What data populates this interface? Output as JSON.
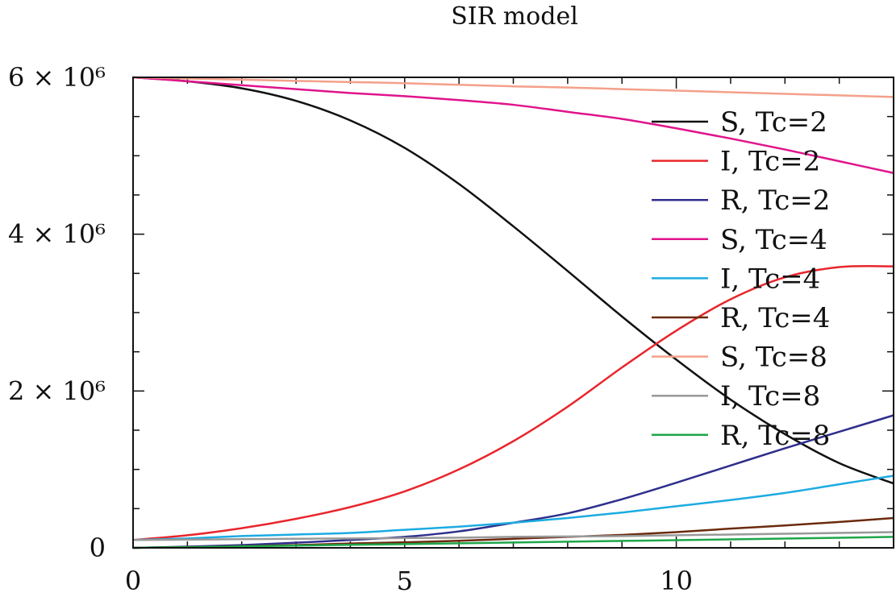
{
  "chart_data": {
    "type": "line",
    "title": "SIR model",
    "xlabel": "",
    "ylabel": "",
    "xlim": [
      0,
      14
    ],
    "ylim": [
      0,
      6000000
    ],
    "x_ticks": [
      0,
      5,
      10
    ],
    "x_tick_labels": [
      "0",
      "5",
      "10"
    ],
    "y_ticks": [
      0,
      2000000,
      4000000,
      6000000
    ],
    "y_tick_labels": [
      "0",
      "2 × 10⁶",
      "4 × 10⁶",
      "6 × 10⁶"
    ],
    "legend_position": "right",
    "grid": false,
    "x": [
      0,
      1,
      2,
      3,
      4,
      5,
      6,
      7,
      8,
      9,
      10,
      11,
      12,
      13,
      14
    ],
    "series": [
      {
        "name": "S, Tc=2",
        "color": "#111111",
        "values": [
          6000000,
          5950000,
          5860000,
          5700000,
          5450000,
          5100000,
          4640000,
          4100000,
          3530000,
          2950000,
          2400000,
          1890000,
          1450000,
          1080000,
          820000
        ]
      },
      {
        "name": "I, Tc=2",
        "color": "#e8262c",
        "values": [
          100000,
          160000,
          250000,
          370000,
          520000,
          720000,
          1000000,
          1360000,
          1800000,
          2300000,
          2770000,
          3170000,
          3450000,
          3580000,
          3590000
        ]
      },
      {
        "name": "R, Tc=2",
        "color": "#2e2f8c",
        "values": [
          0,
          15000,
          35000,
          65000,
          100000,
          140000,
          210000,
          320000,
          440000,
          620000,
          830000,
          1050000,
          1270000,
          1480000,
          1690000
        ]
      },
      {
        "name": "S, Tc=4",
        "color": "#e0148c",
        "values": [
          6000000,
          5950000,
          5900000,
          5850000,
          5800000,
          5760000,
          5710000,
          5650000,
          5560000,
          5470000,
          5350000,
          5220000,
          5080000,
          4930000,
          4780000
        ]
      },
      {
        "name": "I, Tc=4",
        "color": "#1cabe2",
        "values": [
          100000,
          120000,
          150000,
          170000,
          190000,
          230000,
          270000,
          320000,
          380000,
          450000,
          530000,
          610000,
          700000,
          810000,
          920000
        ]
      },
      {
        "name": "R, Tc=4",
        "color": "#6b2a0c",
        "values": [
          0,
          10000,
          20000,
          35000,
          55000,
          70000,
          90000,
          115000,
          140000,
          165000,
          200000,
          245000,
          285000,
          330000,
          380000
        ]
      },
      {
        "name": "S, Tc=8",
        "color": "#f4a08a",
        "values": [
          6000000,
          5985000,
          5970000,
          5955000,
          5940000,
          5925000,
          5905000,
          5885000,
          5870000,
          5850000,
          5830000,
          5810000,
          5790000,
          5770000,
          5750000
        ]
      },
      {
        "name": "I, Tc=8",
        "color": "#999999",
        "values": [
          100000,
          105000,
          110000,
          115000,
          120000,
          125000,
          130000,
          140000,
          145000,
          150000,
          160000,
          170000,
          180000,
          190000,
          200000
        ]
      },
      {
        "name": "R, Tc=8",
        "color": "#1ea64a",
        "values": [
          0,
          8000,
          18000,
          28000,
          38000,
          48000,
          58000,
          68000,
          78000,
          88000,
          98000,
          108000,
          118000,
          128000,
          140000
        ]
      }
    ]
  }
}
